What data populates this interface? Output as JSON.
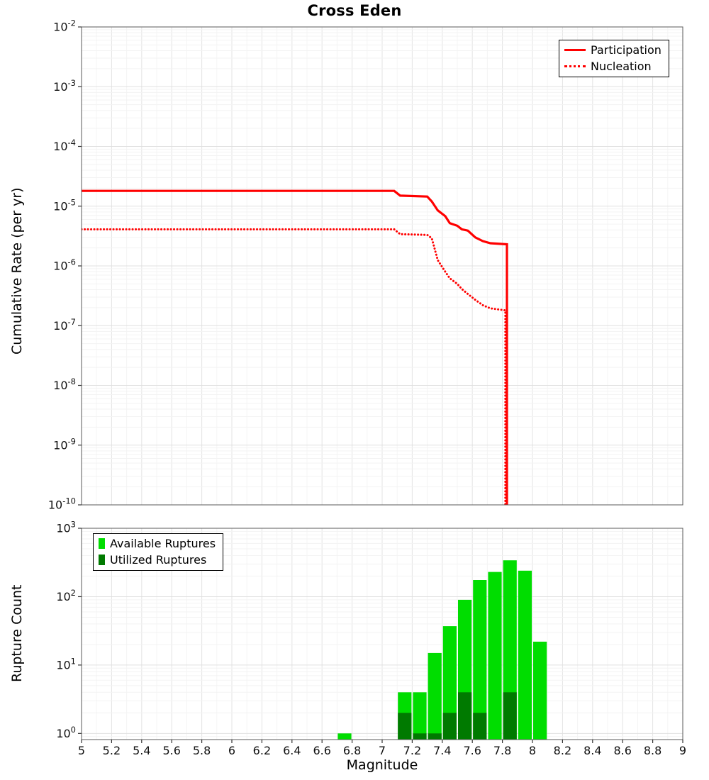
{
  "title": "Cross Eden",
  "chart_data": [
    {
      "type": "line",
      "title": "Cross Eden",
      "xlabel": "Magnitude",
      "ylabel": "Cumulative Rate (per yr)",
      "xlim": [
        5,
        9
      ],
      "ylim_log10": [
        -10,
        -2
      ],
      "grid": true,
      "legend_position": "top-right",
      "xticks": [
        5,
        5.2,
        5.4,
        5.6,
        5.8,
        6,
        6.2,
        6.4,
        6.6,
        6.8,
        7,
        7.2,
        7.4,
        7.6,
        7.8,
        8,
        8.2,
        8.4,
        8.6,
        8.8,
        9
      ],
      "ylog_ticks": [
        -2,
        -3,
        -4,
        -5,
        -6,
        -7,
        -8,
        -9,
        -10
      ],
      "series": [
        {
          "name": "Participation",
          "color": "#ff0000",
          "style": "solid",
          "points": [
            [
              5.0,
              1.8e-05
            ],
            [
              7.08,
              1.8e-05
            ],
            [
              7.12,
              1.5e-05
            ],
            [
              7.3,
              1.45e-05
            ],
            [
              7.33,
              1.2e-05
            ],
            [
              7.37,
              8.5e-06
            ],
            [
              7.42,
              6.8e-06
            ],
            [
              7.45,
              5.2e-06
            ],
            [
              7.5,
              4.7e-06
            ],
            [
              7.53,
              4.1e-06
            ],
            [
              7.57,
              3.9e-06
            ],
            [
              7.62,
              3e-06
            ],
            [
              7.67,
              2.6e-06
            ],
            [
              7.72,
              2.4e-06
            ],
            [
              7.83,
              2.3e-06
            ],
            [
              7.83,
              1e-10
            ]
          ]
        },
        {
          "name": "Nucleation",
          "color": "#ff0000",
          "style": "dotted",
          "points": [
            [
              5.0,
              4.1e-06
            ],
            [
              7.08,
              4.1e-06
            ],
            [
              7.12,
              3.4e-06
            ],
            [
              7.3,
              3.3e-06
            ],
            [
              7.33,
              2.9e-06
            ],
            [
              7.37,
              1.25e-06
            ],
            [
              7.42,
              8e-07
            ],
            [
              7.45,
              6.2e-07
            ],
            [
              7.5,
              5e-07
            ],
            [
              7.53,
              4.1e-07
            ],
            [
              7.57,
              3.4e-07
            ],
            [
              7.62,
              2.7e-07
            ],
            [
              7.67,
              2.2e-07
            ],
            [
              7.72,
              1.95e-07
            ],
            [
              7.82,
              1.8e-07
            ],
            [
              7.82,
              1e-10
            ]
          ]
        }
      ]
    },
    {
      "type": "bar",
      "title": "",
      "xlabel": "Magnitude",
      "ylabel": "Rupture Count",
      "xlim": [
        5,
        9
      ],
      "ylim_log10": [
        0,
        3
      ],
      "grid": true,
      "legend_position": "top-left",
      "bar_width": 0.1,
      "xticks": [
        5,
        5.2,
        5.4,
        5.6,
        5.8,
        6,
        6.2,
        6.4,
        6.6,
        6.8,
        7,
        7.2,
        7.4,
        7.6,
        7.8,
        8,
        8.2,
        8.4,
        8.6,
        8.8,
        9
      ],
      "ylog_ticks": [
        0,
        1,
        2,
        3
      ],
      "series": [
        {
          "name": "Available Ruptures",
          "color": "#00dd00",
          "bars": [
            [
              6.75,
              1
            ],
            [
              7.15,
              4
            ],
            [
              7.25,
              4
            ],
            [
              7.35,
              15
            ],
            [
              7.45,
              37
            ],
            [
              7.55,
              90
            ],
            [
              7.65,
              175
            ],
            [
              7.75,
              230
            ],
            [
              7.85,
              340
            ],
            [
              7.95,
              240
            ],
            [
              8.05,
              22
            ]
          ]
        },
        {
          "name": "Utilized Ruptures",
          "color": "#007a00",
          "bars": [
            [
              7.15,
              2
            ],
            [
              7.25,
              1
            ],
            [
              7.35,
              1
            ],
            [
              7.45,
              2
            ],
            [
              7.55,
              4
            ],
            [
              7.65,
              2
            ],
            [
              7.85,
              4
            ]
          ]
        }
      ]
    }
  ]
}
